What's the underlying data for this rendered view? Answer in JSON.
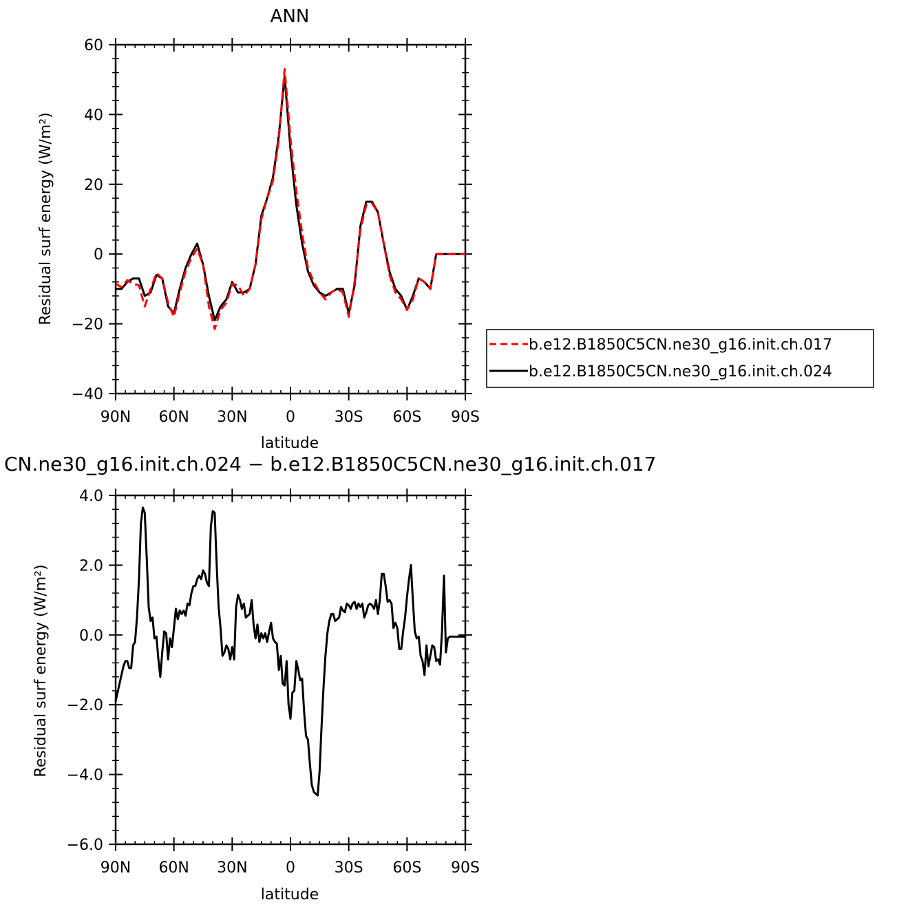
{
  "chart_data": [
    {
      "type": "line",
      "title": "ANN",
      "xlabel": "latitude",
      "ylabel": "Residual surf energy (W/m²)",
      "xlim": [
        -90,
        90
      ],
      "ylim": [
        -40,
        60
      ],
      "x_ticks": [
        -90,
        -60,
        -30,
        0,
        30,
        60,
        90
      ],
      "x_tick_labels": [
        "90N",
        "60N",
        "30N",
        "0",
        "30S",
        "60S",
        "90S"
      ],
      "y_ticks": [
        60,
        40,
        20,
        0,
        -20,
        -40
      ],
      "y_tick_labels": [
        "60",
        "40",
        "20",
        "0",
        "−20",
        "−40"
      ],
      "legend_position": "right",
      "series": [
        {
          "name": "b.e12.B1850C5CN.ne30_g16.init.ch.017",
          "color": "#ff0000",
          "dash": "dashed",
          "x": [
            -90,
            -87,
            -84,
            -81,
            -78,
            -75,
            -72,
            -69,
            -66,
            -63,
            -60,
            -57,
            -54,
            -51,
            -48,
            -45,
            -42,
            -39,
            -36,
            -33,
            -30,
            -27,
            -24,
            -21,
            -18,
            -15,
            -12,
            -9,
            -6,
            -3,
            0,
            3,
            6,
            9,
            12,
            15,
            18,
            21,
            24,
            27,
            30,
            33,
            36,
            39,
            42,
            45,
            48,
            51,
            54,
            57,
            60,
            63,
            66,
            69,
            72,
            75,
            78,
            79,
            80,
            84,
            88,
            90
          ],
          "y": [
            -8.5,
            -9.5,
            -7.5,
            -8.5,
            -9,
            -15,
            -10,
            -5.5,
            -7,
            -14,
            -18,
            -11,
            -5,
            -1,
            1.5,
            -3,
            -15,
            -21.5,
            -16,
            -14,
            -8.5,
            -9,
            -12,
            -10,
            -3,
            10,
            16,
            21,
            33,
            53,
            33,
            18,
            6,
            -4,
            -8,
            -11,
            -13,
            -11,
            -10,
            -11,
            -18,
            -8,
            7,
            14,
            14.5,
            12,
            3,
            -6,
            -11,
            -13,
            -16,
            -13,
            -7,
            -8,
            -10,
            0,
            0,
            0,
            0,
            0,
            0,
            0
          ]
        },
        {
          "name": "b.e12.B1850C5CN.ne30_g16.init.ch.024",
          "color": "#000000",
          "dash": "solid",
          "x": [
            -90,
            -87,
            -84,
            -81,
            -78,
            -75,
            -72,
            -69,
            -66,
            -63,
            -60,
            -57,
            -54,
            -51,
            -48,
            -45,
            -42,
            -39,
            -36,
            -33,
            -30,
            -27,
            -24,
            -21,
            -18,
            -15,
            -12,
            -9,
            -6,
            -3,
            0,
            3,
            6,
            9,
            12,
            15,
            18,
            21,
            24,
            27,
            30,
            33,
            36,
            39,
            42,
            45,
            48,
            51,
            54,
            57,
            60,
            63,
            66,
            69,
            72,
            75,
            78,
            79,
            80,
            84,
            88,
            90
          ],
          "y": [
            -10,
            -10,
            -8,
            -7,
            -7,
            -12,
            -11,
            -6,
            -7,
            -15,
            -17,
            -10,
            -4,
            0,
            3,
            -3,
            -12,
            -19,
            -15,
            -13,
            -8,
            -11,
            -11,
            -10,
            -3,
            11,
            16,
            22,
            34,
            51,
            30,
            14,
            3,
            -5,
            -9,
            -11,
            -12,
            -11,
            -10,
            -10,
            -17,
            -9,
            8,
            15,
            15,
            12,
            3,
            -5,
            -10,
            -12,
            -16,
            -12,
            -7,
            -8,
            -10,
            0,
            0,
            0,
            0,
            0,
            0,
            0
          ]
        }
      ]
    },
    {
      "type": "line",
      "title": "CN.ne30_g16.init.ch.024 − b.e12.B1850C5CN.ne30_g16.init.ch.017",
      "xlabel": "latitude",
      "ylabel": "Residual surf energy (W/m²)",
      "xlim": [
        -90,
        90
      ],
      "ylim": [
        -6,
        4
      ],
      "x_ticks": [
        -90,
        -60,
        -30,
        0,
        30,
        60,
        90
      ],
      "x_tick_labels": [
        "90N",
        "60N",
        "30N",
        "0",
        "30S",
        "60S",
        "90S"
      ],
      "y_ticks": [
        4,
        2,
        0,
        -2,
        -4,
        -6
      ],
      "y_tick_labels": [
        "4.0",
        "2.0",
        "0.0",
        "−2.0",
        "−4.0",
        "−6.0"
      ],
      "series": [
        {
          "color": "#000000",
          "dash": "solid",
          "x": [
            -90,
            -88,
            -86,
            -85,
            -84,
            -83,
            -82,
            -81,
            -80,
            -79,
            -78,
            -77,
            -76,
            -75,
            -74,
            -73,
            -72,
            -71,
            -70,
            -69,
            -68,
            -67,
            -66,
            -65,
            -64,
            -63,
            -62,
            -61,
            -60,
            -59,
            -58,
            -57,
            -56,
            -55,
            -54,
            -53,
            -52,
            -51,
            -50,
            -49,
            -48,
            -47,
            -46,
            -45,
            -44,
            -43,
            -42,
            -41,
            -40,
            -39,
            -38,
            -37,
            -36,
            -35,
            -34,
            -33,
            -32,
            -31,
            -30,
            -29,
            -28,
            -27,
            -26,
            -25,
            -24,
            -23,
            -22,
            -21,
            -20,
            -19,
            -18,
            -17,
            -16,
            -15,
            -14,
            -13,
            -12,
            -11,
            -10,
            -9,
            -8,
            -7,
            -6,
            -5,
            -4,
            -3,
            -2,
            -1,
            0,
            1,
            2,
            3,
            4,
            5,
            6,
            7,
            8,
            9,
            10,
            11,
            12,
            13,
            14,
            15,
            16,
            17,
            18,
            19,
            20,
            21,
            22,
            23,
            24,
            25,
            26,
            27,
            28,
            29,
            30,
            31,
            32,
            33,
            34,
            35,
            36,
            37,
            38,
            39,
            40,
            41,
            42,
            43,
            44,
            45,
            46,
            47,
            48,
            49,
            50,
            51,
            52,
            53,
            54,
            55,
            56,
            57,
            58,
            59,
            60,
            61,
            62,
            63,
            64,
            65,
            66,
            67,
            68,
            69,
            70,
            71,
            72,
            73,
            74,
            75,
            76,
            77,
            78,
            79,
            80,
            81,
            82,
            84,
            86,
            88,
            90
          ],
          "y": [
            -1.9,
            -1.4,
            -0.9,
            -0.75,
            -0.75,
            -0.95,
            -0.95,
            -0.3,
            -0.2,
            0.5,
            1.6,
            3.2,
            3.65,
            3.5,
            2.2,
            0.8,
            0.4,
            0.5,
            -0.1,
            -0.05,
            -0.7,
            -1.2,
            -0.5,
            0.1,
            0.05,
            -0.7,
            -0.1,
            -0.35,
            0.2,
            0.75,
            0.45,
            0.7,
            0.6,
            0.7,
            0.55,
            0.9,
            0.85,
            1.2,
            1.4,
            1.4,
            1.6,
            1.7,
            1.6,
            1.85,
            1.75,
            1.5,
            1.4,
            3.1,
            3.55,
            3.5,
            2.0,
            0.8,
            0.2,
            -0.6,
            -0.5,
            -0.3,
            -0.4,
            -0.7,
            -0.35,
            -0.7,
            0.8,
            1.15,
            1.0,
            0.75,
            0.9,
            0.5,
            0.55,
            0.6,
            1.0,
            0.3,
            -0.1,
            0.3,
            -0.2,
            0.05,
            -0.1,
            0.05,
            -0.2,
            0.1,
            0.35,
            -0.1,
            -0.2,
            -0.25,
            -1.0,
            -0.6,
            -1.4,
            -1.45,
            -0.75,
            -2.0,
            -2.4,
            -1.65,
            -1.6,
            -0.75,
            -1.0,
            -1.3,
            -1.25,
            -2.2,
            -2.9,
            -3.0,
            -3.7,
            -4.3,
            -4.5,
            -4.55,
            -4.6,
            -3.9,
            -2.6,
            -1.5,
            -0.6,
            0.05,
            0.4,
            0.6,
            0.6,
            0.4,
            0.45,
            0.5,
            0.8,
            0.7,
            0.65,
            0.9,
            0.85,
            0.75,
            0.9,
            0.95,
            0.75,
            0.9,
            0.8,
            0.9,
            0.5,
            0.65,
            0.85,
            0.9,
            0.85,
            0.75,
            1.0,
            0.6,
            1.0,
            1.75,
            1.75,
            1.4,
            0.95,
            1.0,
            0.9,
            0.2,
            0.35,
            0.2,
            -0.4,
            -0.4,
            0.1,
            0.5,
            1.1,
            1.6,
            2.0,
            1.0,
            0.1,
            -0.1,
            -0.05,
            -0.6,
            -0.75,
            -1.15,
            -0.3,
            -0.9,
            -0.6,
            -0.3,
            -0.35,
            -0.75,
            -0.7,
            -0.85,
            0.1,
            1.7,
            -0.5,
            -0.1,
            -0.05,
            -0.05,
            -0.05,
            -0.05,
            -0.05
          ]
        }
      ]
    }
  ]
}
